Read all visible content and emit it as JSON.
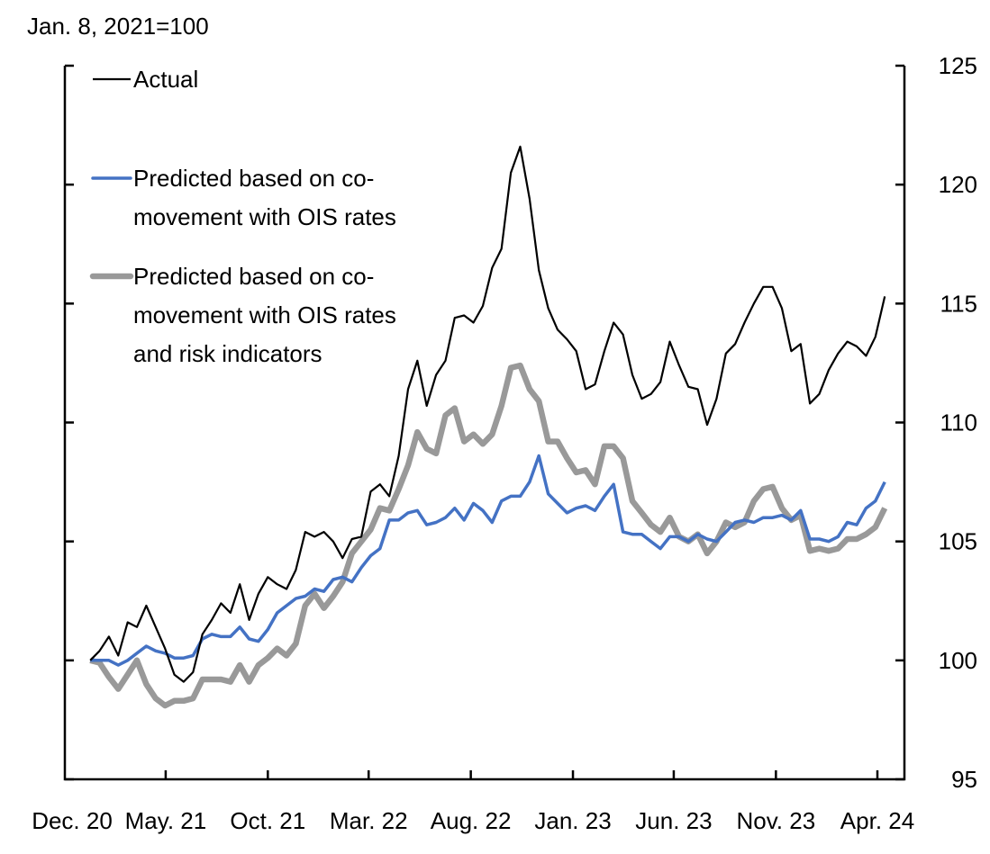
{
  "chart_data": {
    "type": "line",
    "title": "",
    "unit_label": "Jan. 8, 2021=100",
    "xlabel": "",
    "ylabel": "",
    "ylim": [
      95,
      125
    ],
    "yticks": [
      95,
      100,
      105,
      110,
      115,
      120,
      125
    ],
    "y_axis_side": "right",
    "grid": false,
    "legend_placement": "top-left",
    "xticks": [
      {
        "date": "2020-12-01",
        "label": "Dec. 20"
      },
      {
        "date": "2021-05-01",
        "label": "May. 21"
      },
      {
        "date": "2021-10-01",
        "label": "Oct. 21"
      },
      {
        "date": "2022-03-01",
        "label": "Mar. 22"
      },
      {
        "date": "2022-08-01",
        "label": "Aug. 22"
      },
      {
        "date": "2023-01-01",
        "label": "Jan. 23"
      },
      {
        "date": "2023-06-01",
        "label": "Jun. 23"
      },
      {
        "date": "2023-11-01",
        "label": "Nov. 23"
      },
      {
        "date": "2024-04-01",
        "label": "Apr. 24"
      }
    ],
    "x": [
      "2021-01-08",
      "2021-01-22",
      "2021-02-05",
      "2021-02-19",
      "2021-03-05",
      "2021-03-19",
      "2021-04-02",
      "2021-04-16",
      "2021-04-30",
      "2021-05-14",
      "2021-05-28",
      "2021-06-11",
      "2021-06-25",
      "2021-07-09",
      "2021-07-23",
      "2021-08-06",
      "2021-08-20",
      "2021-09-03",
      "2021-09-17",
      "2021-10-01",
      "2021-10-15",
      "2021-10-29",
      "2021-11-12",
      "2021-11-26",
      "2021-12-10",
      "2021-12-24",
      "2022-01-07",
      "2022-01-21",
      "2022-02-04",
      "2022-02-18",
      "2022-03-04",
      "2022-03-18",
      "2022-04-01",
      "2022-04-15",
      "2022-04-29",
      "2022-05-13",
      "2022-05-27",
      "2022-06-10",
      "2022-06-24",
      "2022-07-08",
      "2022-07-22",
      "2022-08-05",
      "2022-08-19",
      "2022-09-02",
      "2022-09-16",
      "2022-09-30",
      "2022-10-14",
      "2022-10-28",
      "2022-11-11",
      "2022-11-25",
      "2022-12-09",
      "2022-12-23",
      "2023-01-06",
      "2023-01-20",
      "2023-02-03",
      "2023-02-17",
      "2023-03-03",
      "2023-03-17",
      "2023-03-31",
      "2023-04-14",
      "2023-04-28",
      "2023-05-12",
      "2023-05-26",
      "2023-06-09",
      "2023-06-23",
      "2023-07-07",
      "2023-07-21",
      "2023-08-04",
      "2023-08-18",
      "2023-09-01",
      "2023-09-15",
      "2023-09-29",
      "2023-10-13",
      "2023-10-27",
      "2023-11-10",
      "2023-11-24",
      "2023-12-08",
      "2023-12-22",
      "2024-01-05",
      "2024-01-19",
      "2024-02-02",
      "2024-02-16",
      "2024-03-01",
      "2024-03-15",
      "2024-03-29",
      "2024-04-12"
    ],
    "series": [
      {
        "name": "Actual",
        "legend_lines": [
          "Actual"
        ],
        "color": "#000000",
        "values": [
          100.0,
          100.4,
          101.0,
          100.2,
          101.6,
          101.4,
          102.3,
          101.4,
          100.5,
          99.4,
          99.1,
          99.5,
          101.1,
          101.7,
          102.4,
          102.0,
          103.2,
          101.7,
          102.8,
          103.5,
          103.2,
          103.0,
          103.8,
          105.4,
          105.2,
          105.4,
          105.0,
          104.3,
          105.1,
          105.2,
          107.1,
          107.4,
          106.9,
          108.6,
          111.4,
          112.6,
          110.7,
          112.0,
          112.6,
          114.4,
          114.5,
          114.2,
          114.9,
          116.5,
          117.3,
          120.5,
          121.6,
          119.4,
          116.4,
          114.8,
          113.9,
          113.5,
          113.0,
          111.4,
          111.6,
          113.0,
          114.2,
          113.7,
          112.0,
          111.0,
          111.2,
          111.7,
          113.4,
          112.4,
          111.5,
          111.4,
          109.9,
          111.0,
          112.9,
          113.3,
          114.2,
          115.0,
          115.7,
          115.7,
          114.8,
          113.0,
          113.3,
          110.8,
          111.2,
          112.2,
          112.9,
          113.4,
          113.2,
          112.8,
          113.6,
          115.3
        ]
      },
      {
        "name": "Predicted based on co-movement with OIS rates",
        "legend_lines": [
          "Predicted based on co-",
          "movement with OIS rates"
        ],
        "color": "#4472C4",
        "values": [
          100.0,
          100.0,
          100.0,
          99.8,
          100.0,
          100.3,
          100.6,
          100.4,
          100.3,
          100.1,
          100.1,
          100.2,
          100.9,
          101.1,
          101.0,
          101.0,
          101.4,
          100.9,
          100.8,
          101.3,
          102.0,
          102.3,
          102.6,
          102.7,
          103.0,
          102.9,
          103.4,
          103.5,
          103.3,
          103.9,
          104.4,
          104.7,
          105.9,
          105.9,
          106.2,
          106.3,
          105.7,
          105.8,
          106.0,
          106.4,
          105.9,
          106.6,
          106.3,
          105.8,
          106.7,
          106.9,
          106.9,
          107.5,
          108.6,
          107.0,
          106.6,
          106.2,
          106.4,
          106.5,
          106.3,
          106.9,
          107.4,
          105.4,
          105.3,
          105.3,
          105.0,
          104.7,
          105.2,
          105.2,
          105.0,
          105.3,
          105.1,
          105.0,
          105.4,
          105.8,
          105.9,
          105.8,
          106.0,
          106.0,
          106.1,
          105.9,
          106.3,
          105.1,
          105.1,
          105.0,
          105.2,
          105.8,
          105.7,
          106.4,
          106.7,
          107.5
        ]
      },
      {
        "name": "Predicted based on co-movement with OIS rates and risk indicators",
        "legend_lines": [
          "Predicted based on co-",
          "movement with OIS rates",
          "and risk indicators"
        ],
        "color": "#999999",
        "values": [
          100.0,
          99.9,
          99.3,
          98.8,
          99.4,
          100.0,
          99.0,
          98.4,
          98.1,
          98.3,
          98.3,
          98.4,
          99.2,
          99.2,
          99.2,
          99.1,
          99.8,
          99.1,
          99.8,
          100.1,
          100.5,
          100.2,
          100.7,
          102.3,
          102.8,
          102.2,
          102.7,
          103.3,
          104.5,
          105.0,
          105.5,
          106.4,
          106.3,
          107.2,
          108.2,
          109.6,
          108.9,
          108.7,
          110.3,
          110.6,
          109.2,
          109.5,
          109.1,
          109.5,
          110.7,
          112.3,
          112.4,
          111.4,
          110.9,
          109.2,
          109.2,
          108.5,
          107.9,
          108.0,
          107.4,
          109.0,
          109.0,
          108.5,
          106.7,
          106.2,
          105.7,
          105.4,
          106.0,
          105.2,
          105.0,
          105.3,
          104.5,
          105.0,
          105.8,
          105.6,
          105.8,
          106.7,
          107.2,
          107.3,
          106.4,
          105.9,
          106.1,
          104.6,
          104.7,
          104.6,
          104.7,
          105.1,
          105.1,
          105.3,
          105.6,
          106.4
        ]
      }
    ]
  }
}
